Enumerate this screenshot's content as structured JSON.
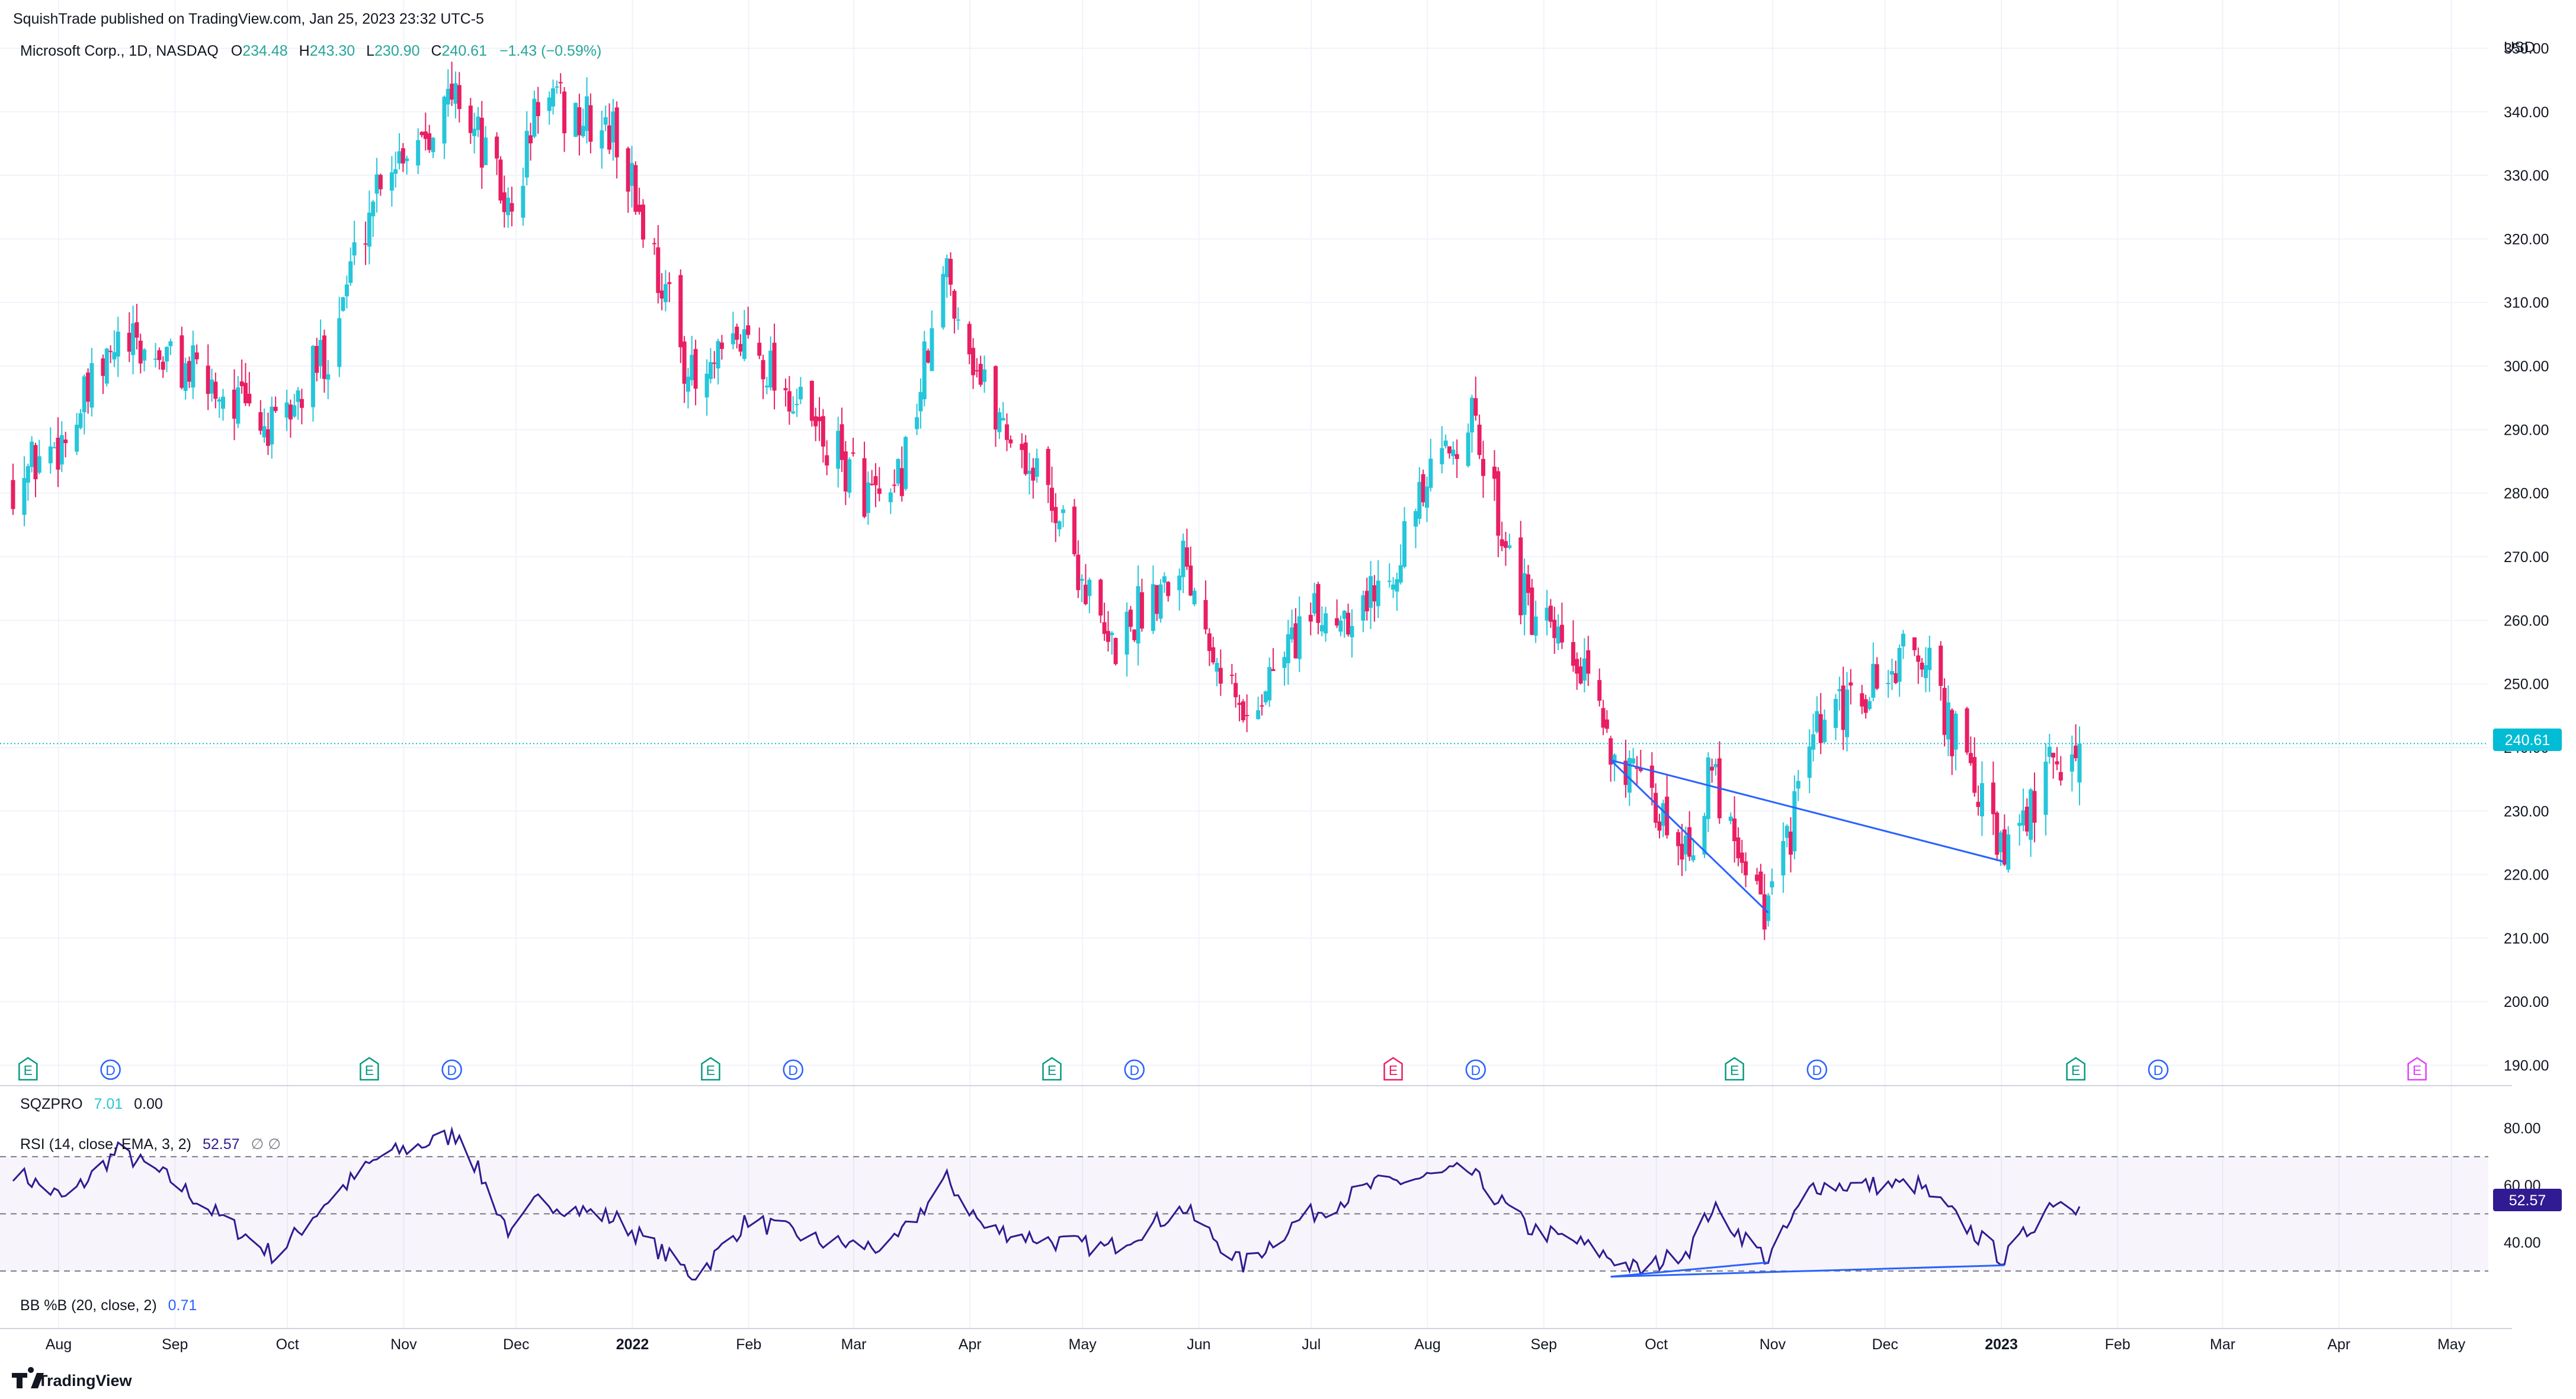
{
  "header": {
    "publisher": "SquishTrade published on TradingView.com, Jan 25, 2023 23:32 UTC-5"
  },
  "legend": {
    "symbol": "Microsoft Corp., 1D, NASDAQ",
    "o_label": "O",
    "o_value": "234.48",
    "h_label": "H",
    "h_value": "243.30",
    "l_label": "L",
    "l_value": "230.90",
    "c_label": "C",
    "c_value": "240.61",
    "change": "−1.43 (−0.59%)"
  },
  "colors": {
    "up": "#26c6da",
    "down": "#e91e63",
    "rsi": "#311b92",
    "trendline": "#2962ff",
    "price_tag": "#00bcd4",
    "rsi_tag": "#311b92",
    "axis_text": "#131722"
  },
  "price_axis": {
    "currency": "USD",
    "ticks": [
      "350.00",
      "340.00",
      "330.00",
      "320.00",
      "310.00",
      "300.00",
      "290.00",
      "280.00",
      "270.00",
      "260.00",
      "250.00",
      "240.00",
      "230.00",
      "220.00",
      "210.00",
      "200.00",
      "190.00"
    ],
    "last_price_tag": "240.61"
  },
  "sqzpro": {
    "name": "SQZPRO",
    "v1": "7.01",
    "v2": "0.00"
  },
  "rsi": {
    "name": "RSI (14, close, EMA, 3, 2)",
    "value": "52.57",
    "extra": "∅ ∅",
    "ticks": [
      "80.00",
      "60.00",
      "40.00"
    ],
    "last_tag": "52.57"
  },
  "bb": {
    "name": "BB %B (20, close, 2)",
    "value": "0.71"
  },
  "time_axis": {
    "labels": [
      "Aug",
      "Sep",
      "Oct",
      "Nov",
      "Dec",
      "2022",
      "Feb",
      "Mar",
      "Apr",
      "May",
      "Jun",
      "Jul",
      "Aug",
      "Sep",
      "Oct",
      "Nov",
      "Dec",
      "2023",
      "Feb",
      "Mar",
      "Apr",
      "May"
    ]
  },
  "events": [
    {
      "letter": "E",
      "kind": "earnings"
    },
    {
      "letter": "D",
      "kind": "dividend"
    },
    {
      "letter": "E",
      "kind": "earnings"
    },
    {
      "letter": "D",
      "kind": "dividend"
    },
    {
      "letter": "E",
      "kind": "earnings"
    },
    {
      "letter": "D",
      "kind": "dividend"
    },
    {
      "letter": "E",
      "kind": "earnings"
    },
    {
      "letter": "D",
      "kind": "dividend"
    },
    {
      "letter": "E",
      "kind": "earnings-miss"
    },
    {
      "letter": "D",
      "kind": "dividend"
    },
    {
      "letter": "E",
      "kind": "earnings"
    },
    {
      "letter": "D",
      "kind": "dividend"
    },
    {
      "letter": "E",
      "kind": "earnings"
    },
    {
      "letter": "D",
      "kind": "dividend"
    },
    {
      "letter": "E",
      "kind": "earnings-future"
    }
  ],
  "footer": {
    "brand": "TradingView"
  },
  "chart_data": [
    {
      "type": "candlestick",
      "title": "Microsoft Corp., 1D, NASDAQ",
      "ylabel": "USD",
      "ylim": [
        188,
        352
      ],
      "x_months": [
        "2021-08",
        "2021-09",
        "2021-10",
        "2021-11",
        "2021-12",
        "2022-01",
        "2022-02",
        "2022-03",
        "2022-04",
        "2022-05",
        "2022-06",
        "2022-07",
        "2022-08",
        "2022-09",
        "2022-10",
        "2022-11",
        "2022-12",
        "2023-01"
      ],
      "close_path": [
        [
          "2021-07-23",
          282
        ],
        [
          "2021-08-06",
          289
        ],
        [
          "2021-08-20",
          303
        ],
        [
          "2021-09-03",
          301
        ],
        [
          "2021-09-17",
          296
        ],
        [
          "2021-10-01",
          289
        ],
        [
          "2021-10-15",
          303
        ],
        [
          "2021-10-29",
          331
        ],
        [
          "2021-11-19",
          343
        ],
        [
          "2021-12-03",
          323
        ],
        [
          "2021-12-10",
          342
        ],
        [
          "2021-12-31",
          336
        ],
        [
          "2022-01-21",
          296
        ],
        [
          "2022-02-04",
          305
        ],
        [
          "2022-02-24",
          288
        ],
        [
          "2022-03-14",
          276
        ],
        [
          "2022-03-29",
          315
        ],
        [
          "2022-04-08",
          296
        ],
        [
          "2022-04-28",
          277
        ],
        [
          "2022-05-11",
          255
        ],
        [
          "2022-05-31",
          271
        ],
        [
          "2022-06-16",
          244
        ],
        [
          "2022-07-01",
          259
        ],
        [
          "2022-07-21",
          264
        ],
        [
          "2022-08-15",
          293
        ],
        [
          "2022-08-31",
          261
        ],
        [
          "2022-09-13",
          252
        ],
        [
          "2022-09-30",
          232
        ],
        [
          "2022-10-13",
          225
        ],
        [
          "2022-10-19",
          236
        ],
        [
          "2022-11-03",
          214
        ],
        [
          "2022-11-15",
          241
        ],
        [
          "2022-12-13",
          256
        ],
        [
          "2023-01-05",
          222
        ],
        [
          "2023-01-18",
          237
        ],
        [
          "2023-01-25",
          240.61
        ]
      ],
      "last": {
        "open": 234.48,
        "high": 243.3,
        "low": 230.9,
        "close": 240.61,
        "change": -1.43,
        "change_pct": -0.59
      },
      "trendlines": [
        {
          "from": [
            "2022-09-22",
            238
          ],
          "to": [
            "2022-11-03",
            214
          ]
        },
        {
          "from": [
            "2022-09-22",
            238
          ],
          "to": [
            "2023-01-05",
            222
          ]
        }
      ]
    },
    {
      "type": "line",
      "title": "RSI (14, close, EMA, 3, 2)",
      "ylim": [
        25,
        82
      ],
      "levels": [
        70,
        50,
        30
      ],
      "path": [
        [
          "2021-07-23",
          65
        ],
        [
          "2021-08-06",
          55
        ],
        [
          "2021-08-20",
          72
        ],
        [
          "2021-09-03",
          62
        ],
        [
          "2021-09-17",
          48
        ],
        [
          "2021-10-01",
          35
        ],
        [
          "2021-10-15",
          55
        ],
        [
          "2021-10-29",
          70
        ],
        [
          "2021-11-19",
          78
        ],
        [
          "2021-12-03",
          42
        ],
        [
          "2021-12-10",
          55
        ],
        [
          "2021-12-31",
          48
        ],
        [
          "2022-01-21",
          28
        ],
        [
          "2022-02-04",
          48
        ],
        [
          "2022-02-24",
          40
        ],
        [
          "2022-03-14",
          38
        ],
        [
          "2022-03-29",
          62
        ],
        [
          "2022-04-08",
          45
        ],
        [
          "2022-04-28",
          40
        ],
        [
          "2022-05-11",
          38
        ],
        [
          "2022-05-31",
          52
        ],
        [
          "2022-06-16",
          32
        ],
        [
          "2022-07-01",
          48
        ],
        [
          "2022-07-21",
          60
        ],
        [
          "2022-08-15",
          65
        ],
        [
          "2022-08-31",
          45
        ],
        [
          "2022-09-13",
          40
        ],
        [
          "2022-09-30",
          30
        ],
        [
          "2022-10-13",
          38
        ],
        [
          "2022-10-19",
          52
        ],
        [
          "2022-11-03",
          34
        ],
        [
          "2022-11-15",
          60
        ],
        [
          "2022-12-13",
          60
        ],
        [
          "2023-01-05",
          34
        ],
        [
          "2023-01-18",
          55
        ],
        [
          "2023-01-25",
          52.57
        ]
      ],
      "divergence_lines": [
        {
          "from": [
            "2022-09-22",
            28
          ],
          "to": [
            "2022-11-03",
            33
          ]
        },
        {
          "from": [
            "2022-09-22",
            28
          ],
          "to": [
            "2023-01-05",
            32
          ]
        }
      ]
    }
  ]
}
